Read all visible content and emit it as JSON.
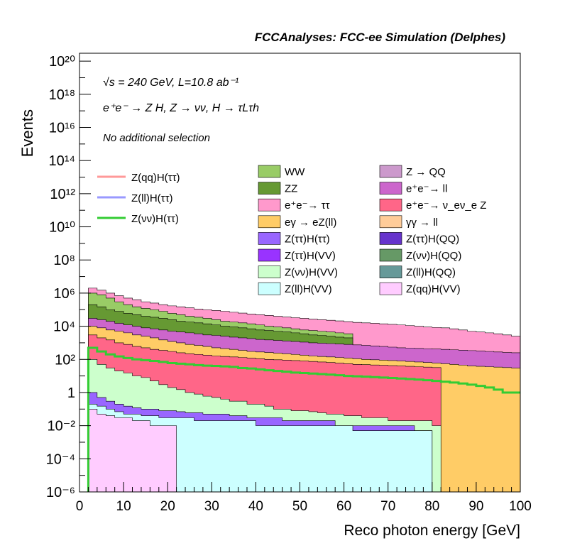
{
  "header": {
    "title": "FCCAnalyses: FCC-ee Simulation (Delphes)",
    "energy_line": "√s = 240 GeV, L=10.8 ab⁻¹",
    "process_line": "e⁺e⁻ → Z H, Z → νν, H → τLτh",
    "selection_line": "No additional selection"
  },
  "chart_data": {
    "type": "histogram",
    "xlabel": "Reco photon energy [GeV]",
    "ylabel": "Events",
    "xlim": [
      0,
      100
    ],
    "ylim": [
      1e-06,
      3e+20
    ],
    "yscale": "log",
    "x_ticks": [
      "0",
      "10",
      "20",
      "30",
      "40",
      "50",
      "60",
      "70",
      "80",
      "90",
      "100"
    ],
    "y_ticks": [
      "10⁻⁶",
      "10⁻⁴",
      "10⁻²",
      "1",
      "10²",
      "10⁴",
      "10⁶",
      "10⁸",
      "10¹⁰",
      "10¹²",
      "10¹⁴",
      "10¹⁶",
      "10¹⁸",
      "10²⁰"
    ],
    "bins": {
      "start": 2,
      "end": 100,
      "width": 2
    },
    "stacked_envelopes": [
      {
        "name": "Z(qq)H(VV)",
        "color": "#ffccff",
        "values": [
          0.1,
          0.05,
          0.04,
          0.03,
          0.03,
          0.02,
          0.02,
          0.01,
          0.01,
          0.01
        ]
      },
      {
        "name": "Z(ll)H(VV)",
        "color": "#ccffff",
        "values": [
          0.2,
          0.15,
          0.1,
          0.07,
          0.05,
          0.05,
          0.04,
          0.04,
          0.03,
          0.03,
          0.03,
          0.03,
          0.02,
          0.02,
          0.02,
          0.02,
          0.02,
          0.02,
          0.02,
          0.01,
          0.01,
          0.01,
          0.01,
          0.01,
          0.01,
          0.01,
          0.01,
          0.01,
          0.01,
          0.01,
          0.005,
          0.005,
          0.005,
          0.005,
          0.005,
          0.005,
          0.005,
          0.005,
          0.005
        ]
      },
      {
        "name": "Z(ττ)H(ττ)",
        "color": "#9966ff",
        "values": [
          1,
          0.5,
          0.3,
          0.2,
          0.15,
          0.12,
          0.1,
          0.1,
          0.08,
          0.08,
          0.07,
          0.06,
          0.06,
          0.05,
          0.05,
          0.05,
          0.04,
          0.04,
          0.03,
          0.03,
          0.03,
          0.03,
          0.02,
          0.02,
          0.02,
          0.02,
          0.02,
          0.02,
          0.01,
          0.01,
          0.01,
          0.01,
          0.01,
          0.01,
          0.01,
          0.01,
          0.01,
          0.005,
          0.005
        ]
      },
      {
        "name": "Z(νν)H(VV)",
        "color": "#ccffcc",
        "values": [
          100,
          50,
          30,
          20,
          15,
          10,
          8,
          5,
          3,
          2,
          1.5,
          1,
          0.8,
          0.6,
          0.5,
          0.4,
          0.3,
          0.3,
          0.2,
          0.2,
          0.15,
          0.1,
          0.1,
          0.08,
          0.08,
          0.07,
          0.06,
          0.05,
          0.05,
          0.04,
          0.04,
          0.03,
          0.03,
          0.03,
          0.02,
          0.02,
          0.02,
          0.02,
          0.02,
          0.01
        ]
      },
      {
        "name": "e⁺e⁻→ ν_eν_e Z",
        "color": "#ff6688",
        "values": [
          3000,
          2000,
          1500,
          1000,
          800,
          600,
          500,
          400,
          350,
          300,
          250,
          220,
          200,
          180,
          160,
          150,
          140,
          130,
          120,
          110,
          100,
          95,
          90,
          85,
          80,
          75,
          70,
          65,
          60,
          55,
          50,
          48,
          46,
          44,
          42,
          40,
          38,
          36,
          34,
          32
        ]
      },
      {
        "name": "eγ → eZ(ll)",
        "color": "#ffcc66",
        "values": [
          10000.0,
          8000.0,
          6000.0,
          5000.0,
          4000.0,
          3000.0,
          2500.0,
          2000.0,
          1500.0,
          1200.0,
          1000.0,
          800,
          700,
          600,
          500,
          450,
          400,
          350,
          300,
          280,
          260,
          240,
          220,
          200,
          180,
          160,
          150,
          140,
          130,
          120,
          110,
          100,
          95,
          90,
          85,
          80,
          75,
          70,
          65,
          60,
          55,
          50,
          45,
          40,
          38,
          36,
          34,
          32,
          30
        ]
      },
      {
        "name": "e⁺e⁻→ ll",
        "color": "#cc66cc",
        "values": [
          30000.0,
          25000.0,
          20000.0,
          15000.0,
          12000.0,
          10000.0,
          8000.0,
          7000.0,
          6000.0,
          5000.0,
          4500.0,
          4000.0,
          3500.0,
          3000.0,
          2800.0,
          2500.0,
          2200.0,
          2000.0,
          1800.0,
          1600.0,
          1500.0,
          1400.0,
          1300.0,
          1200.0,
          1100.0,
          1000.0,
          950,
          900,
          850,
          800,
          750,
          700,
          650,
          600,
          550,
          500,
          480,
          460,
          440,
          420,
          400,
          380,
          360,
          340,
          320,
          300,
          280,
          260,
          250
        ]
      },
      {
        "name": "ZZ",
        "color": "#669933",
        "values": [
          200000.0,
          150000.0,
          100000.0,
          80000.0,
          60000.0,
          50000.0,
          40000.0,
          35000.0,
          30000.0,
          25000.0,
          20000.0,
          18000.0,
          16000.0,
          14000.0,
          12000.0,
          10000.0,
          9000.0,
          8000.0,
          7000.0,
          6000.0,
          5500.0,
          5000.0,
          4500.0,
          4000.0,
          3500.0,
          3000.0,
          2800.0,
          2500.0,
          2200.0,
          2000.0
        ]
      },
      {
        "name": "WW",
        "color": "#99cc66",
        "values": [
          1000000.0,
          800000.0,
          500000.0,
          300000.0,
          200000.0,
          150000.0,
          120000.0,
          100000.0,
          80000.0,
          60000.0,
          50000.0,
          40000.0,
          35000.0,
          30000.0,
          25000.0,
          20000.0,
          18000.0,
          16000.0,
          14000.0,
          12000.0,
          10000.0,
          9000.0,
          8000.0,
          7000.0,
          6000.0,
          5500.0,
          5000.0,
          4500.0,
          4000.0,
          3500.0
        ]
      },
      {
        "name": "e⁺e⁻→ ττ",
        "color": "#ff99cc",
        "values": [
          2000000.0,
          1500000.0,
          1000000.0,
          700000.0,
          500000.0,
          400000.0,
          300000.0,
          250000.0,
          200000.0,
          170000.0,
          150000.0,
          130000.0,
          110000.0,
          100000.0,
          90000.0,
          80000.0,
          70000.0,
          62000.0,
          55000.0,
          50000.0,
          45000.0,
          40000.0,
          36000.0,
          33000.0,
          30000.0,
          27000.0,
          25000.0,
          23000.0,
          21000.0,
          19000.0,
          17000.0,
          16000.0,
          15000.0,
          14000.0,
          13000.0,
          12000.0,
          11000.0,
          10000.0,
          9000.0,
          8500.0,
          8000.0,
          7000.0,
          6000.0,
          5000.0,
          4500.0,
          4000.0,
          3500.0,
          3000.0,
          2500.0
        ]
      }
    ],
    "lines": [
      {
        "name": "Z(qq)H(ττ)",
        "color": "#ff9999"
      },
      {
        "name": "Z(ll)H(ττ)",
        "color": "#9999ff"
      },
      {
        "name": "Z(νν)H(ττ)",
        "color": "#33cc33",
        "values": [
          500,
          300,
          200,
          150,
          120,
          100,
          90,
          80,
          70,
          60,
          55,
          50,
          45,
          42,
          40,
          38,
          35,
          30,
          28,
          25,
          22,
          20,
          18,
          16,
          15,
          14,
          13,
          12,
          11,
          10,
          9.5,
          9,
          8.5,
          8,
          7.5,
          7,
          6.5,
          6,
          5.5,
          5,
          4.5,
          4,
          3.5,
          3,
          2.5,
          2,
          1.5,
          1,
          1
        ]
      }
    ],
    "legend_items": [
      {
        "name": "WW",
        "color": "#99cc66"
      },
      {
        "name": "Z → QQ",
        "color": "#cc99cc"
      },
      {
        "name": "ZZ",
        "color": "#669933"
      },
      {
        "name": "e⁺e⁻→ ll",
        "color": "#cc66cc"
      },
      {
        "name": "e⁺e⁻→ ττ",
        "color": "#ff99cc"
      },
      {
        "name": "e⁺e⁻→ ν_eν_e Z",
        "color": "#ff6688"
      },
      {
        "name": "eγ → eZ(ll)",
        "color": "#ffcc66"
      },
      {
        "name": "γγ → ll",
        "color": "#ffcc99"
      },
      {
        "name": "Z(ττ)H(ττ)",
        "color": "#9966ff"
      },
      {
        "name": "Z(ττ)H(QQ)",
        "color": "#6633cc"
      },
      {
        "name": "Z(ττ)H(VV)",
        "color": "#9933ff"
      },
      {
        "name": "Z(νν)H(QQ)",
        "color": "#669966"
      },
      {
        "name": "Z(νν)H(VV)",
        "color": "#ccffcc"
      },
      {
        "name": "Z(ll)H(QQ)",
        "color": "#669999"
      },
      {
        "name": "Z(ll)H(VV)",
        "color": "#ccffff"
      },
      {
        "name": "Z(qq)H(VV)",
        "color": "#ffccff"
      }
    ]
  }
}
